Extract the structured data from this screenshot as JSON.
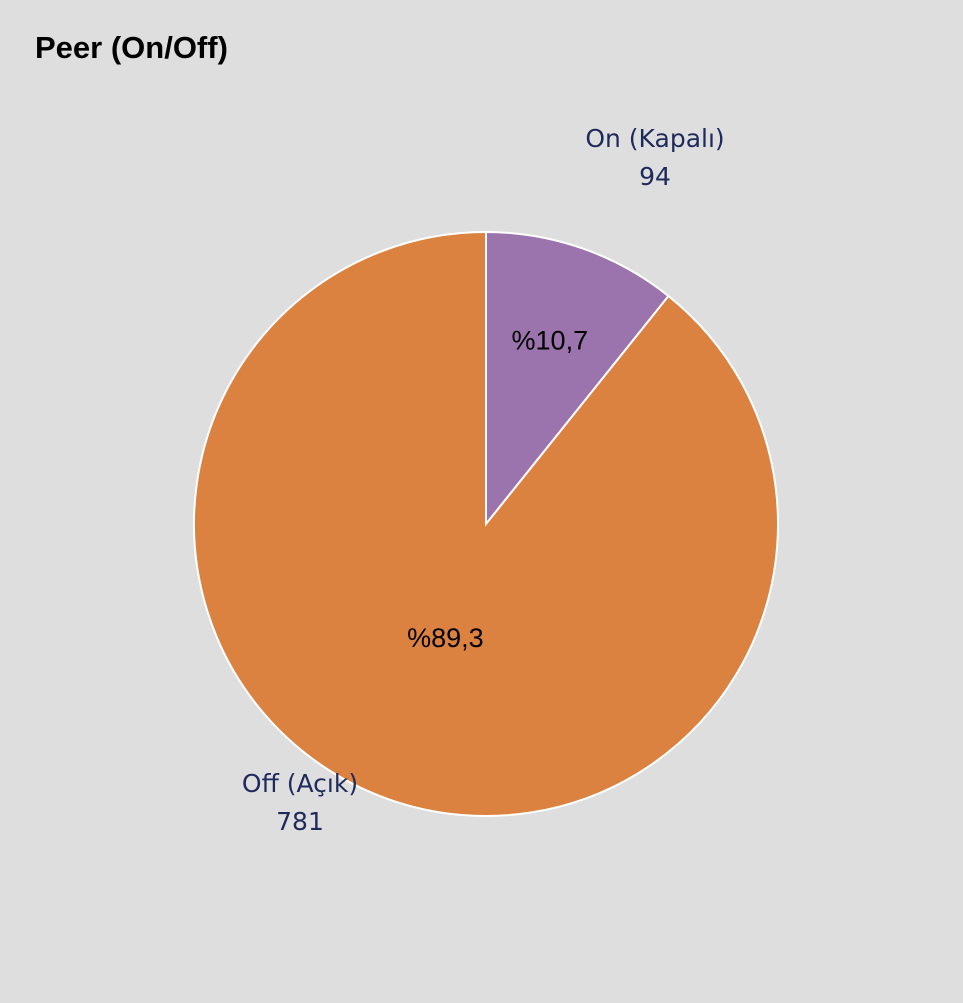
{
  "chart_data": {
    "type": "pie",
    "title": "Peer (On/Off)",
    "categories": [
      "On (Kapalı)",
      "Off (Açık)"
    ],
    "values": [
      94,
      781
    ],
    "percentages": [
      10.7,
      89.3
    ],
    "percentage_labels": [
      "%10,7",
      "%89,3"
    ],
    "colors": [
      "#9b73ad",
      "#dc8240"
    ]
  }
}
